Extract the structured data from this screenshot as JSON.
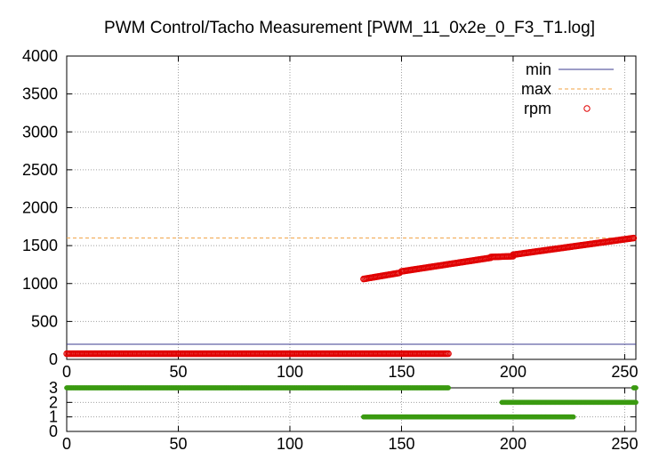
{
  "chart_data": [
    {
      "type": "line",
      "title": "PWM Control/Tacho Measurement [PWM_11_0x2e_0_F3_T1.log]",
      "xlabel": "",
      "ylabel": "",
      "xlim": [
        0,
        255
      ],
      "ylim": [
        0,
        4000
      ],
      "grid": true,
      "legend_position": "top-right",
      "x_ticks": [
        0,
        50,
        100,
        150,
        200,
        250
      ],
      "y_ticks": [
        0,
        500,
        1000,
        1500,
        2000,
        2500,
        3000,
        3500,
        4000
      ],
      "series": [
        {
          "name": "min",
          "style": "line",
          "color": "#3b3b8f",
          "y": 200
        },
        {
          "name": "max",
          "style": "dashed",
          "color": "#f0a040",
          "y": 1600
        },
        {
          "name": "rpm",
          "style": "scatter",
          "color": "#e00000",
          "segments": [
            {
              "x_from": 0,
              "x_to": 171,
              "y_from": 75,
              "y_to": 75
            },
            {
              "x_from": 133,
              "x_to": 149,
              "y_from": 1060,
              "y_to": 1140
            },
            {
              "x_from": 150,
              "x_to": 190,
              "y_from": 1160,
              "y_to": 1340
            },
            {
              "x_from": 190,
              "x_to": 200,
              "y_from": 1350,
              "y_to": 1360
            },
            {
              "x_from": 200,
              "x_to": 254,
              "y_from": 1380,
              "y_to": 1600
            }
          ]
        }
      ]
    },
    {
      "type": "scatter",
      "title": "",
      "xlim": [
        0,
        255
      ],
      "ylim": [
        0,
        3
      ],
      "grid": true,
      "x_ticks": [
        0,
        50,
        100,
        150,
        200,
        250
      ],
      "y_ticks": [
        0,
        1,
        2,
        3
      ],
      "series": [
        {
          "name": "",
          "color": "#3a9a10",
          "segments": [
            {
              "x_from": 0,
              "x_to": 171,
              "y": 3
            },
            {
              "x_from": 254,
              "x_to": 255,
              "y": 3
            },
            {
              "x_from": 195,
              "x_to": 255,
              "y": 2
            },
            {
              "x_from": 133,
              "x_to": 227,
              "y": 1
            }
          ]
        }
      ]
    }
  ]
}
